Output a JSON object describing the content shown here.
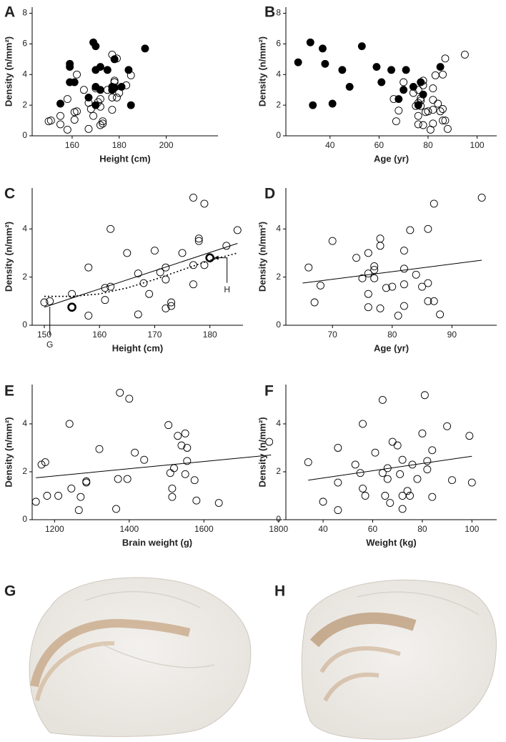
{
  "chart_data": [
    {
      "type": "scatter",
      "label": "A",
      "xlabel": "Height (cm)",
      "ylabel": "Density (n/mm²)",
      "xlim": [
        143,
        222
      ],
      "xticks": [
        160,
        180,
        200
      ],
      "ylim": [
        0,
        8.4
      ],
      "yticks": [
        0,
        2,
        4,
        6,
        8
      ],
      "series": [
        {
          "marker": "open",
          "color": "#000000",
          "x": [
            150,
            151,
            155,
            155,
            158,
            158,
            161,
            161,
            162,
            162,
            165,
            167,
            167,
            168,
            169,
            170,
            171,
            172,
            172,
            172,
            173,
            173,
            175,
            177,
            177,
            177,
            178,
            178,
            179,
            179,
            180,
            183,
            185
          ],
          "values": [
            0.95,
            1.0,
            1.3,
            0.75,
            2.4,
            0.4,
            1.55,
            1.05,
            1.6,
            4.0,
            3.0,
            0.45,
            2.15,
            1.75,
            1.3,
            3.1,
            2.2,
            0.7,
            1.9,
            2.4,
            0.95,
            0.8,
            3.0,
            5.3,
            2.5,
            1.7,
            3.6,
            3.5,
            5.05,
            2.5,
            2.8,
            3.3,
            3.95
          ]
        },
        {
          "marker": "filled",
          "color": "#000000",
          "x": [
            155,
            159,
            159,
            159,
            161,
            167,
            169,
            170,
            170,
            170,
            170,
            172,
            172,
            175,
            177,
            177,
            178,
            178,
            181,
            184,
            185,
            191
          ],
          "values": [
            2.1,
            4.7,
            3.5,
            4.5,
            3.5,
            2.5,
            6.1,
            5.85,
            4.3,
            3.2,
            2.0,
            4.5,
            3.0,
            4.3,
            3.0,
            3.2,
            5.0,
            3.15,
            3.2,
            4.3,
            2.0,
            5.7
          ]
        }
      ]
    },
    {
      "type": "scatter",
      "label": "B",
      "xlabel": "Age (yr)",
      "ylabel": "Density (n/mm²)",
      "xlim": [
        22,
        108
      ],
      "xticks": [
        40,
        60,
        80,
        100
      ],
      "ylim": [
        0,
        8.4
      ],
      "yticks": [
        0,
        2,
        4,
        6,
        8
      ],
      "series": [
        {
          "marker": "open",
          "color": "#000000",
          "x": [
            66,
            67,
            68,
            70,
            74,
            75,
            76,
            76,
            76,
            76,
            77,
            77,
            77,
            78,
            78,
            78,
            79,
            80,
            81,
            82,
            82,
            82,
            82,
            83,
            84,
            85,
            86,
            86,
            87,
            86,
            87,
            88,
            95
          ],
          "values": [
            2.4,
            0.95,
            1.65,
            3.5,
            2.8,
            1.95,
            3.0,
            0.75,
            2.15,
            1.3,
            2.3,
            2.45,
            1.95,
            3.6,
            3.3,
            0.7,
            1.55,
            1.6,
            0.4,
            3.1,
            2.35,
            1.7,
            0.8,
            3.95,
            2.1,
            1.6,
            1.0,
            1.75,
            1.0,
            4.0,
            5.05,
            0.45,
            5.3
          ]
        },
        {
          "marker": "filled",
          "color": "#000000",
          "x": [
            27,
            32,
            33,
            37,
            38,
            41,
            45,
            48,
            53,
            59,
            61,
            65,
            68,
            70,
            71,
            74,
            76,
            77,
            78,
            85
          ],
          "values": [
            4.8,
            6.1,
            2.0,
            5.7,
            4.7,
            2.1,
            4.3,
            3.2,
            5.85,
            4.5,
            3.5,
            4.3,
            2.4,
            3.0,
            4.3,
            3.2,
            2.0,
            3.5,
            2.7,
            4.5
          ]
        }
      ]
    },
    {
      "type": "scatter",
      "label": "C",
      "xlabel": "Height (cm)",
      "ylabel": "Density (n/mm²)",
      "xlim": [
        147.8,
        186
      ],
      "xticks": [
        150,
        160,
        170,
        180
      ],
      "ylim": [
        0,
        5.7
      ],
      "yticks": [
        0,
        2,
        4
      ],
      "series": [
        {
          "marker": "open",
          "color": "#000000",
          "x": [
            150,
            151,
            155,
            158,
            158,
            161,
            161,
            162,
            162,
            165,
            167,
            167,
            168,
            169,
            170,
            171,
            172,
            172,
            172,
            173,
            173,
            175,
            177,
            177,
            177,
            178,
            178,
            179,
            179,
            183,
            185
          ],
          "values": [
            0.95,
            1.0,
            1.3,
            2.4,
            0.4,
            1.55,
            1.05,
            1.6,
            4.0,
            3.0,
            0.45,
            2.15,
            1.75,
            1.3,
            3.1,
            2.2,
            0.7,
            1.9,
            2.4,
            0.95,
            0.8,
            3.0,
            5.3,
            2.5,
            1.7,
            3.6,
            3.5,
            5.05,
            2.5,
            3.3,
            3.95
          ]
        },
        {
          "marker": "bold",
          "color": "#000000",
          "x": [
            155,
            180
          ],
          "values": [
            0.75,
            2.8
          ]
        }
      ],
      "fits": [
        {
          "style": "solid",
          "x": [
            150,
            185
          ],
          "values": [
            0.75,
            3.4
          ]
        },
        {
          "style": "dotted",
          "x": [
            150,
            155,
            160,
            165,
            170,
            175,
            180,
            185
          ],
          "values": [
            1.2,
            1.2,
            1.3,
            1.55,
            1.9,
            2.3,
            2.7,
            3.0
          ]
        }
      ],
      "annotations": [
        {
          "text": "G",
          "x": 151,
          "y": 0.95
        },
        {
          "text": "H",
          "x": 180,
          "y": 2.8
        }
      ]
    },
    {
      "type": "scatter",
      "label": "D",
      "xlabel": "Age (yr)",
      "ylabel": "Density (n/mm²)",
      "xlim": [
        62.2,
        97.5
      ],
      "xticks": [
        70,
        80,
        90
      ],
      "ylim": [
        0,
        5.7
      ],
      "yticks": [
        0,
        2,
        4
      ],
      "series": [
        {
          "marker": "open",
          "color": "#000000",
          "x": [
            66,
            67,
            68,
            70,
            74,
            75,
            76,
            76,
            76,
            76,
            77,
            77,
            77,
            78,
            78,
            78,
            79,
            80,
            81,
            82,
            82,
            82,
            82,
            83,
            84,
            85,
            86,
            86,
            87,
            86,
            87,
            88,
            95
          ],
          "values": [
            2.4,
            0.95,
            1.65,
            3.5,
            2.8,
            1.95,
            3.0,
            0.75,
            2.15,
            1.3,
            2.3,
            2.45,
            1.95,
            3.6,
            3.3,
            0.7,
            1.55,
            1.6,
            0.4,
            3.1,
            2.35,
            1.7,
            0.8,
            3.95,
            2.1,
            1.6,
            1.0,
            1.75,
            1.0,
            4.0,
            5.05,
            0.45,
            5.3
          ]
        }
      ],
      "fits": [
        {
          "style": "solid",
          "x": [
            65,
            95
          ],
          "values": [
            1.75,
            2.7
          ]
        }
      ]
    },
    {
      "type": "scatter",
      "label": "E",
      "xlabel": "Brain weight (g)",
      "ylabel": "Density (n/mm²)",
      "xlim": [
        1140,
        1810
      ],
      "xticks": [
        1200,
        1400,
        1600,
        1800
      ],
      "ylim": [
        0,
        5.64
      ],
      "yticks": [
        0,
        2,
        4
      ],
      "series": [
        {
          "marker": "open",
          "color": "#000000",
          "x": [
            1150,
            1165,
            1175,
            1180,
            1210,
            1240,
            1245,
            1265,
            1270,
            1285,
            1285,
            1320,
            1365,
            1370,
            1375,
            1395,
            1400,
            1415,
            1440,
            1505,
            1510,
            1515,
            1515,
            1520,
            1530,
            1540,
            1550,
            1550,
            1555,
            1555,
            1575,
            1580,
            1640,
            1775
          ],
          "values": [
            0.75,
            2.3,
            2.4,
            1.0,
            1.0,
            4.0,
            1.3,
            0.4,
            0.95,
            1.6,
            1.55,
            2.95,
            0.45,
            1.7,
            5.3,
            1.7,
            5.05,
            2.8,
            2.5,
            3.95,
            1.95,
            1.3,
            0.95,
            2.15,
            3.5,
            3.1,
            3.6,
            1.9,
            2.45,
            3.0,
            1.65,
            0.8,
            0.7,
            3.25
          ]
        }
      ],
      "fits": [
        {
          "style": "solid",
          "x": [
            1150,
            1780
          ],
          "values": [
            1.75,
            2.7
          ]
        }
      ]
    },
    {
      "type": "scatter",
      "label": "F",
      "xlabel": "Weight (kg)",
      "ylabel": "Density (n/mm²)",
      "xlim": [
        25,
        110
      ],
      "xticks": [
        40,
        60,
        80,
        100
      ],
      "ylim": [
        0,
        5.64
      ],
      "yticks": [
        0,
        2,
        4
      ],
      "series": [
        {
          "marker": "open",
          "color": "#000000",
          "x": [
            34,
            40,
            46,
            46,
            46,
            53,
            55,
            56,
            56,
            57,
            61,
            64,
            64,
            65,
            66,
            66,
            67,
            68,
            70,
            71,
            72,
            72,
            72,
            74,
            75,
            76,
            78,
            80,
            81,
            82,
            82,
            84,
            84,
            90,
            92,
            99,
            100
          ],
          "values": [
            2.4,
            0.75,
            0.4,
            3.0,
            1.55,
            2.3,
            1.95,
            1.3,
            4.0,
            1.0,
            2.8,
            5.0,
            1.95,
            1.0,
            1.7,
            2.15,
            0.7,
            3.25,
            3.1,
            1.9,
            0.45,
            1.0,
            2.5,
            1.2,
            1.0,
            2.3,
            1.7,
            3.6,
            5.2,
            2.45,
            2.1,
            2.9,
            0.95,
            3.9,
            1.65,
            3.5,
            1.55
          ]
        }
      ],
      "fits": [
        {
          "style": "solid",
          "x": [
            34,
            100
          ],
          "values": [
            1.65,
            2.65
          ]
        }
      ]
    }
  ],
  "images": [
    {
      "label": "G"
    },
    {
      "label": "H"
    }
  ]
}
